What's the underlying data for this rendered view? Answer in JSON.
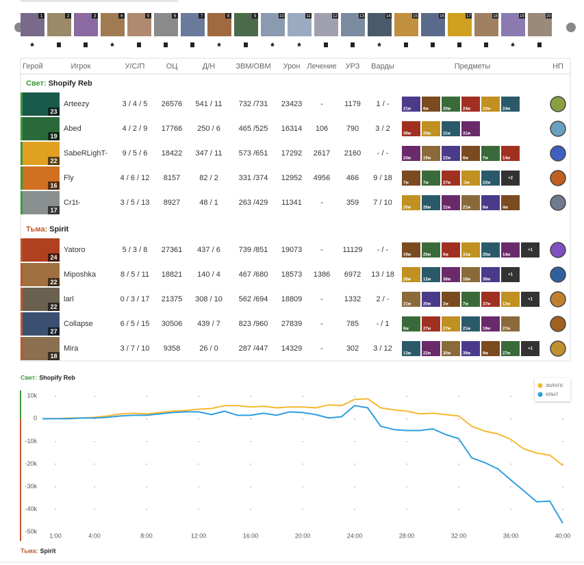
{
  "draft": [
    1,
    2,
    3,
    4,
    5,
    6,
    7,
    8,
    9,
    10,
    11,
    12,
    13,
    14,
    15,
    16,
    17,
    18,
    19,
    20
  ],
  "table": {
    "headers": [
      "Герой",
      "Игрок",
      "У/С/П",
      "ОЦ",
      "Д/Н",
      "ЗВМ/ОВМ",
      "Урон",
      "Лечение",
      "УРЗ",
      "Варды",
      "Предметы",
      "НП"
    ],
    "teams": [
      {
        "side": "Свет:",
        "name": "Shopify Reb",
        "players": [
          {
            "level": 23,
            "name": "Arteezy",
            "kda": "3 / 4 / 5",
            "nw": 26576,
            "lhdn": "541 / 11",
            "gpm": "732 /731",
            "damage": 23423,
            "heal": "-",
            "bld": 1179,
            "wards": "1 / -",
            "items": [
              "21м",
              "6м",
              "20м",
              "24м",
              "10м",
              "24м"
            ]
          },
          {
            "level": 19,
            "name": "Abed",
            "kda": "4 / 2 / 9",
            "nw": 17766,
            "lhdn": "250 / 6",
            "gpm": "465 /525",
            "damage": 16314,
            "heal": 106,
            "bld": 790,
            "wards": "3 / 2",
            "items": [
              "39м",
              "20м",
              "11м",
              "31м"
            ]
          },
          {
            "level": 22,
            "name": "SabeRLighT-",
            "kda": "9 / 5 / 6",
            "nw": 18422,
            "lhdn": "347 / 11",
            "gpm": "573 /651",
            "damage": 17292,
            "heal": 2617,
            "bld": 2160,
            "wards": "- / -",
            "items": [
              "24м",
              "19м",
              "22м",
              "6м",
              "7м",
              "14м"
            ]
          },
          {
            "level": 16,
            "name": "Fly",
            "kda": "4 / 6 / 12",
            "nw": 8157,
            "lhdn": "82 / 2",
            "gpm": "331 /374",
            "damage": 12952,
            "heal": 4956,
            "bld": 466,
            "wards": "9 / 18",
            "items": [
              "7м",
              "7м",
              "27м",
              "-2м",
              "22м"
            ],
            "extra": "+2"
          },
          {
            "level": 17,
            "name": "Cr1t-",
            "kda": "3 / 5 / 13",
            "nw": 8927,
            "lhdn": "48 / 1",
            "gpm": "263 /429",
            "damage": 11341,
            "heal": "-",
            "bld": 359,
            "wards": "7 / 10",
            "items": [
              "20м",
              "28м",
              "11м",
              "21м",
              "6м",
              "4м"
            ]
          }
        ]
      },
      {
        "side": "Тьма:",
        "name": "Spirit",
        "players": [
          {
            "level": 24,
            "name": "Yatoro",
            "kda": "5 / 3 / 8",
            "nw": 27361,
            "lhdn": "437 / 6",
            "gpm": "739 /851",
            "damage": 19073,
            "heal": "-",
            "bld": 11129,
            "wards": "- / -",
            "items": [
              "19м",
              "25м",
              "0м",
              "31м",
              "25м",
              "14м"
            ],
            "extra": "+1"
          },
          {
            "level": 22,
            "name": "Miposhka",
            "kda": "8 / 5 / 11",
            "nw": 18821,
            "lhdn": "140 / 4",
            "gpm": "467 /680",
            "damage": 18573,
            "heal": 1386,
            "bld": 6972,
            "wards": "13 / 18",
            "items": [
              "28м",
              "12м",
              "38м",
              "18м",
              "36м"
            ],
            "extra": "+1"
          },
          {
            "level": 22,
            "name": "larl",
            "kda": "0 / 3 / 17",
            "nw": 21375,
            "lhdn": "308 / 10",
            "gpm": "562 /694",
            "damage": 18809,
            "heal": "-",
            "bld": 1332,
            "wards": "2 / -",
            "items": [
              "21м",
              "20м",
              "2м",
              "7м",
              "37м",
              "12м"
            ],
            "extra": "+1"
          },
          {
            "level": 27,
            "name": "Collapse",
            "kda": "6 / 5 / 15",
            "nw": 30506,
            "lhdn": "439 / 7",
            "gpm": "823 /960",
            "damage": 27839,
            "heal": "-",
            "bld": 785,
            "wards": "- / 1",
            "items": [
              "6м",
              "27м",
              "27м",
              "21м",
              "19м",
              "27м"
            ]
          },
          {
            "level": 18,
            "name": "Mira",
            "kda": "3 / 7 / 10",
            "nw": 9358,
            "lhdn": "26 / 0",
            "gpm": "287 /447",
            "damage": 14329,
            "heal": "-",
            "bld": 302,
            "wards": "3 / 12",
            "items": [
              "13м",
              "22м",
              "30м",
              "39м",
              "9м",
              "27м"
            ],
            "extra": "+1"
          }
        ]
      }
    ]
  },
  "chart_data": {
    "type": "line",
    "legend": "top-right",
    "grid": true,
    "x": [
      0,
      1,
      2,
      3,
      4,
      5,
      6,
      7,
      8,
      9,
      10,
      11,
      12,
      13,
      14,
      15,
      16,
      17,
      18,
      19,
      20,
      21,
      22,
      23,
      24,
      25,
      26,
      27,
      28,
      29,
      30,
      31,
      32,
      33,
      34,
      35,
      36,
      37,
      38,
      39,
      40
    ],
    "series": [
      {
        "name": "золото",
        "color": "#f5b82e",
        "values": [
          0,
          0,
          300,
          300,
          600,
          1200,
          2100,
          2400,
          2100,
          2700,
          3300,
          3600,
          4200,
          4500,
          5800,
          5800,
          5200,
          5500,
          4800,
          5200,
          5200,
          4800,
          6100,
          5800,
          8500,
          8800,
          4800,
          3900,
          3300,
          2100,
          2400,
          1800,
          1200,
          -3300,
          -5500,
          -6700,
          -9100,
          -13300,
          -15200,
          -16100,
          -20600
        ]
      },
      {
        "name": "опыт",
        "color": "#2d9de0",
        "values": [
          0,
          0,
          0,
          300,
          300,
          600,
          1200,
          1500,
          1500,
          2100,
          2700,
          3000,
          3000,
          1800,
          3300,
          1500,
          1500,
          2400,
          1500,
          3000,
          2700,
          1800,
          300,
          900,
          5800,
          4800,
          -3300,
          -4800,
          -5200,
          -5200,
          -4500,
          -7000,
          -8800,
          -17300,
          -19400,
          -22100,
          -27000,
          -31800,
          -36700,
          -36400,
          -46100
        ]
      }
    ],
    "xlim": [
      0,
      40
    ],
    "xticks": [
      {
        "value": 1,
        "label": "1:00"
      },
      {
        "value": 4,
        "label": "4:00"
      },
      {
        "value": 8,
        "label": "8:00"
      },
      {
        "value": 12,
        "label": "12:00"
      },
      {
        "value": 16,
        "label": "16:00"
      },
      {
        "value": 20,
        "label": "20:00"
      },
      {
        "value": 24,
        "label": "24:00"
      },
      {
        "value": 28,
        "label": "28:00"
      },
      {
        "value": 32,
        "label": "32:00"
      },
      {
        "value": 36,
        "label": "36:00"
      },
      {
        "value": 40,
        "label": "40:00"
      }
    ],
    "ylim": [
      -54000,
      12500
    ],
    "yticks": [
      {
        "value": 10000,
        "label": "10k"
      },
      0,
      {
        "value": -10000,
        "label": "-10k"
      },
      {
        "value": -20000,
        "label": "-20k"
      },
      {
        "value": -30000,
        "label": "-30k"
      },
      {
        "value": -40000,
        "label": "-40k"
      },
      {
        "value": -50000,
        "label": "-50k"
      }
    ]
  }
}
